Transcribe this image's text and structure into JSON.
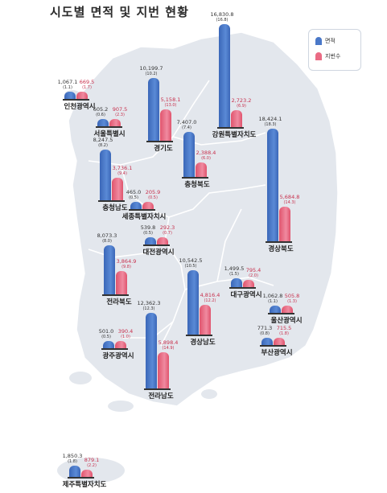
{
  "title": "시도별 면적 및 지번 현황",
  "legend": {
    "area_label": "면적",
    "lots_label": "지번수",
    "area_color": "#4a78c8",
    "lots_color": "#ea6b84"
  },
  "chart_data": {
    "type": "bar",
    "series": [
      {
        "name": "면적"
      },
      {
        "name": "지번수"
      }
    ],
    "regions": [
      {
        "name": "인천광역시",
        "area": "1,067.1",
        "area_pct": "(1.1)",
        "lots": "669.5",
        "lots_pct": "(1.7)",
        "area_value": 1067.1,
        "lots_value": 669.5
      },
      {
        "name": "서울특별시",
        "area": "605.2",
        "area_pct": "(0.6)",
        "lots": "907.5",
        "lots_pct": "(2.3)",
        "area_value": 605.2,
        "lots_value": 907.5
      },
      {
        "name": "경기도",
        "area": "10,199.7",
        "area_pct": "(10.2)",
        "lots": "5,158.1",
        "lots_pct": "(13.0)",
        "area_value": 10199.7,
        "lots_value": 5158.1
      },
      {
        "name": "강원특별자치도",
        "area": "16,830.8",
        "area_pct": "(16.8)",
        "lots": "2,723.2",
        "lots_pct": "(6.9)",
        "area_value": 16830.8,
        "lots_value": 2723.2
      },
      {
        "name": "충청북도",
        "area": "7,407.0",
        "area_pct": "(7.4)",
        "lots": "2,388.4",
        "lots_pct": "(6.0)",
        "area_value": 7407.0,
        "lots_value": 2388.4
      },
      {
        "name": "충청남도",
        "area": "8,247.5",
        "area_pct": "(8.2)",
        "lots": "3,736.1",
        "lots_pct": "(9.4)",
        "area_value": 8247.5,
        "lots_value": 3736.1
      },
      {
        "name": "세종특별자치시",
        "area": "465.0",
        "area_pct": "(0.5)",
        "lots": "205.9",
        "lots_pct": "(0.5)",
        "area_value": 465.0,
        "lots_value": 205.9
      },
      {
        "name": "경상북도",
        "area": "18,424.1",
        "area_pct": "(18.3)",
        "lots": "5,684.8",
        "lots_pct": "(14.3)",
        "area_value": 18424.1,
        "lots_value": 5684.8
      },
      {
        "name": "대전광역시",
        "area": "539.8",
        "area_pct": "(0.5)",
        "lots": "292.3",
        "lots_pct": "(0.7)",
        "area_value": 539.8,
        "lots_value": 292.3
      },
      {
        "name": "전라북도",
        "area": "8,073.3",
        "area_pct": "(8.0)",
        "lots": "3,864.9",
        "lots_pct": "(9.8)",
        "area_value": 8073.3,
        "lots_value": 3864.9
      },
      {
        "name": "대구광역시",
        "area": "1,499.5",
        "area_pct": "(1.5)",
        "lots": "795.4",
        "lots_pct": "(2.0)",
        "area_value": 1499.5,
        "lots_value": 795.4
      },
      {
        "name": "경상남도",
        "area": "10,542.5",
        "area_pct": "(10.5)",
        "lots": "4,816.4",
        "lots_pct": "(12.2)",
        "area_value": 10542.5,
        "lots_value": 4816.4
      },
      {
        "name": "울산광역시",
        "area": "1,062.8",
        "area_pct": "(1.1)",
        "lots": "505.8",
        "lots_pct": "(1.3)",
        "area_value": 1062.8,
        "lots_value": 505.8
      },
      {
        "name": "광주광역시",
        "area": "501.0",
        "area_pct": "(0.5)",
        "lots": "390.4",
        "lots_pct": "(1.0)",
        "area_value": 501.0,
        "lots_value": 390.4
      },
      {
        "name": "전라남도",
        "area": "12,362.3",
        "area_pct": "(12.3)",
        "lots": "5,898.4",
        "lots_pct": "(14.9)",
        "area_value": 12362.3,
        "lots_value": 5898.4
      },
      {
        "name": "부산광역시",
        "area": "771.3",
        "area_pct": "(0.8)",
        "lots": "715.5",
        "lots_pct": "(1.8)",
        "area_value": 771.3,
        "lots_value": 715.5
      },
      {
        "name": "제주특별자치도",
        "area": "1,850.3",
        "area_pct": "(1.8)",
        "lots": "879.1",
        "lots_pct": "(2.2)",
        "area_value": 1850.3,
        "lots_value": 879.1
      }
    ]
  }
}
